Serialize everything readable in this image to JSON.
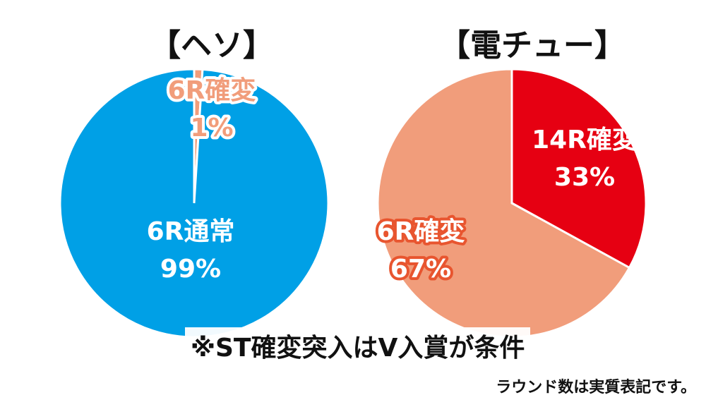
{
  "chart_data": [
    {
      "type": "pie",
      "title": "【ヘソ】",
      "slices": [
        {
          "name": "6R確変",
          "value": 1,
          "label_name": "6R確変",
          "label_value": "1%",
          "color": "#f19d7b",
          "text_color": "#f19d7b",
          "text_stroke": "#ffffff"
        },
        {
          "name": "6R通常",
          "value": 99,
          "label_name": "6R通常",
          "label_value": "99%",
          "color": "#00a0e6",
          "text_color": "#ffffff",
          "text_stroke": "none"
        }
      ]
    },
    {
      "type": "pie",
      "title": "【電チュー】",
      "slices": [
        {
          "name": "14R確変",
          "value": 33,
          "label_name": "14R確変",
          "label_value": "33%",
          "color": "#e60012",
          "text_color": "#ffffff",
          "text_stroke": "none"
        },
        {
          "name": "6R確変",
          "value": 67,
          "label_name": "6R確変",
          "label_value": "67%",
          "color": "#f19d7b",
          "text_color": "#ffffff",
          "text_stroke": "#e8552f"
        }
      ]
    }
  ],
  "footnote": "※ST確変突入はV入賞が条件",
  "note": "ラウンド数は実質表記です。"
}
